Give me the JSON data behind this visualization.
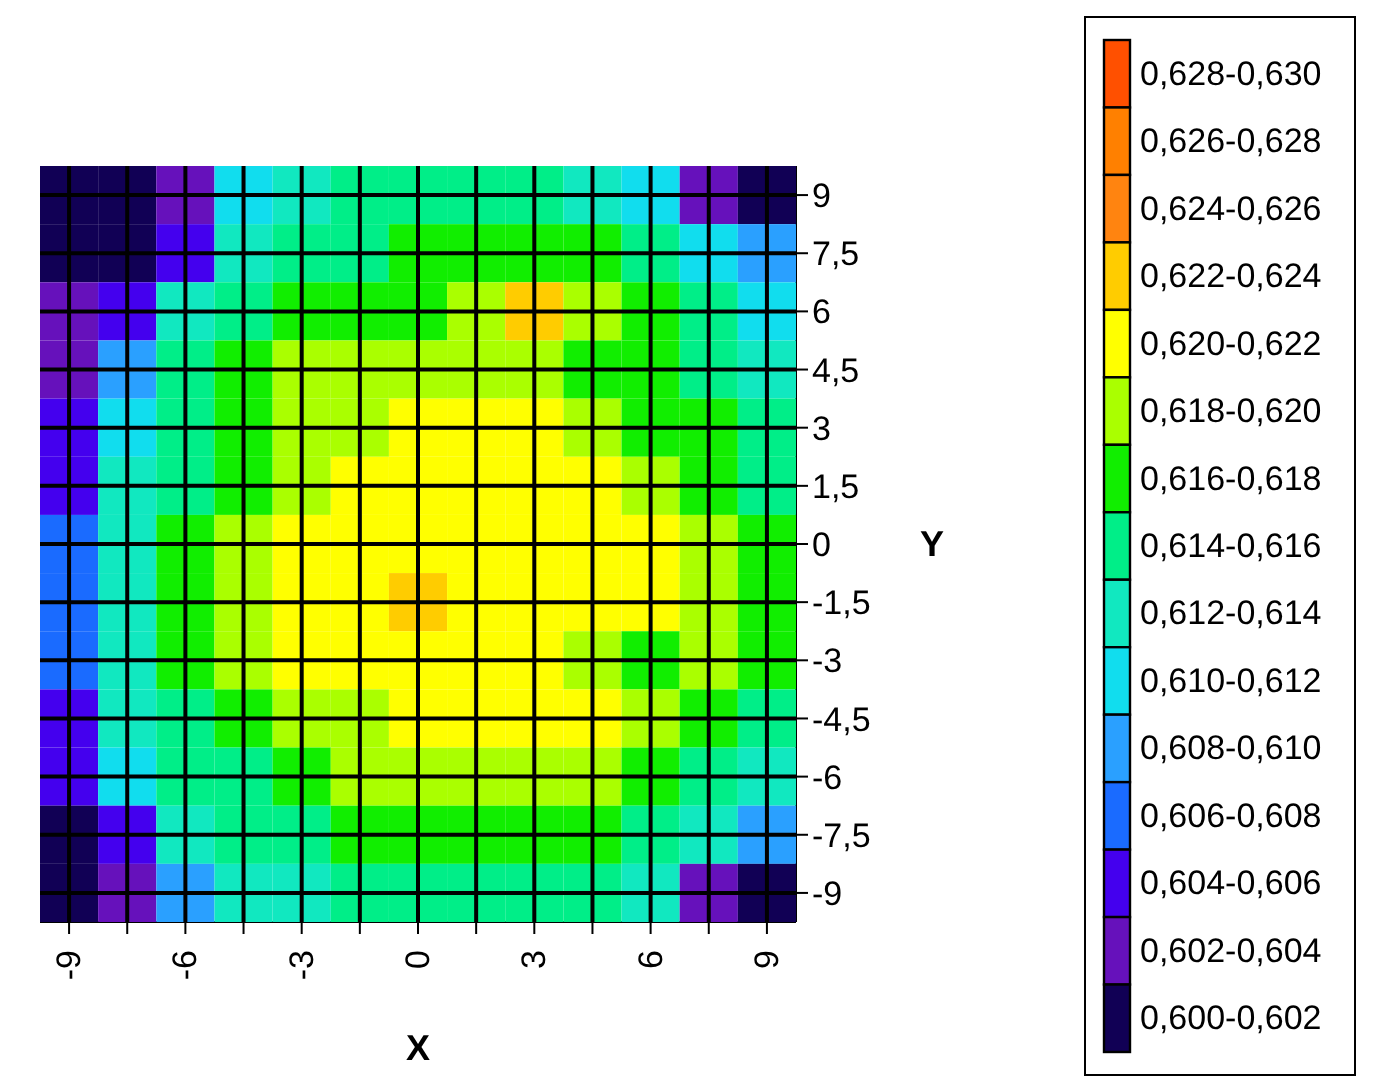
{
  "chart_data": {
    "type": "heatmap",
    "xlabel": "X",
    "ylabel": "Y",
    "categories": [
      "-9",
      null,
      "-6",
      null,
      "-3",
      null,
      "0",
      null,
      "3",
      null,
      "6",
      null,
      "9"
    ],
    "y_categories": [
      "9",
      "7,5",
      "6",
      "4,5",
      "3",
      "1,5",
      "0",
      "-1,5",
      "-3",
      "-4,5",
      "-6",
      "-7,5",
      "-9"
    ],
    "cells": [
      [
        0.601,
        0.601,
        0.603,
        0.611,
        0.613,
        0.615,
        0.615,
        0.615,
        0.615,
        0.613,
        0.611,
        0.603,
        0.601
      ],
      [
        0.601,
        0.601,
        0.605,
        0.613,
        0.615,
        0.615,
        0.617,
        0.617,
        0.617,
        0.617,
        0.615,
        0.611,
        0.609
      ],
      [
        0.603,
        0.605,
        0.613,
        0.615,
        0.617,
        0.617,
        0.617,
        0.619,
        0.623,
        0.619,
        0.617,
        0.615,
        0.611
      ],
      [
        0.603,
        0.609,
        0.615,
        0.617,
        0.619,
        0.619,
        0.619,
        0.619,
        0.619,
        0.617,
        0.617,
        0.615,
        0.613
      ],
      [
        0.605,
        0.611,
        0.615,
        0.617,
        0.619,
        0.619,
        0.621,
        0.621,
        0.621,
        0.619,
        0.617,
        0.617,
        0.615
      ],
      [
        0.605,
        0.613,
        0.615,
        0.617,
        0.619,
        0.621,
        0.621,
        0.621,
        0.621,
        0.621,
        0.619,
        0.617,
        0.615
      ],
      [
        0.607,
        0.613,
        0.617,
        0.619,
        0.621,
        0.621,
        0.621,
        0.621,
        0.621,
        0.621,
        0.621,
        0.619,
        0.617
      ],
      [
        0.607,
        0.613,
        0.617,
        0.619,
        0.621,
        0.621,
        0.623,
        0.621,
        0.621,
        0.621,
        0.621,
        0.619,
        0.617
      ],
      [
        0.607,
        0.613,
        0.617,
        0.619,
        0.621,
        0.621,
        0.621,
        0.621,
        0.621,
        0.619,
        0.617,
        0.619,
        0.617
      ],
      [
        0.605,
        0.613,
        0.615,
        0.617,
        0.619,
        0.619,
        0.621,
        0.621,
        0.621,
        0.621,
        0.619,
        0.617,
        0.615
      ],
      [
        0.605,
        0.611,
        0.615,
        0.615,
        0.617,
        0.619,
        0.619,
        0.619,
        0.619,
        0.619,
        0.617,
        0.615,
        0.613
      ],
      [
        0.601,
        0.605,
        0.613,
        0.615,
        0.615,
        0.617,
        0.617,
        0.617,
        0.617,
        0.617,
        0.615,
        0.613,
        0.609
      ],
      [
        0.601,
        0.603,
        0.609,
        0.613,
        0.613,
        0.615,
        0.615,
        0.615,
        0.615,
        0.615,
        0.613,
        0.603,
        0.601
      ]
    ],
    "cticks": [
      {
        "value": 0.629,
        "label": "0,628-0,630"
      },
      {
        "value": 0.627,
        "label": "0,626-0,628"
      },
      {
        "value": 0.625,
        "label": "0,624-0,626"
      },
      {
        "value": 0.623,
        "label": "0,622-0,624"
      },
      {
        "value": 0.621,
        "label": "0,620-0,622"
      },
      {
        "value": 0.619,
        "label": "0,618-0,620"
      },
      {
        "value": 0.617,
        "label": "0,616-0,618"
      },
      {
        "value": 0.615,
        "label": "0,614-0,616"
      },
      {
        "value": 0.613,
        "label": "0,612-0,614"
      },
      {
        "value": 0.611,
        "label": "0,610-0,612"
      },
      {
        "value": 0.609,
        "label": "0,608-0,610"
      },
      {
        "value": 0.607,
        "label": "0,606-0,608"
      },
      {
        "value": 0.605,
        "label": "0,604-0,606"
      },
      {
        "value": 0.603,
        "label": "0,602-0,604"
      },
      {
        "value": 0.601,
        "label": "0,600-0,602"
      }
    ],
    "clim": [
      0.6,
      0.63
    ],
    "colors": [
      "#ff5000",
      "#ff8000",
      "#ff8410",
      "#ffcc00",
      "#ffff00",
      "#aaff00",
      "#11ee00",
      "#00ee88",
      "#11e8c0",
      "#11ddee",
      "#2aa0ff",
      "#1a6bff",
      "#4400ee",
      "#6611bb",
      "#110055"
    ],
    "grid": true
  }
}
